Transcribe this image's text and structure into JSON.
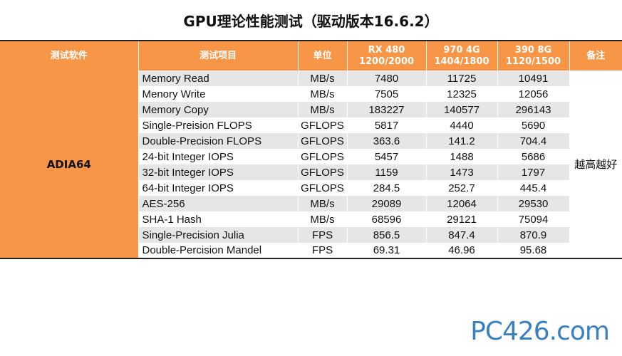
{
  "title": "GPU理论性能测试（驱动版本16.6.2）",
  "headers": {
    "software": "测试软件",
    "item": "测试项目",
    "unit": "单位",
    "gpu1_name": "RX 480",
    "gpu1_clock": "1200/2000",
    "gpu2_name": "970 4G",
    "gpu2_clock": "1404/1800",
    "gpu3_name": "390 8G",
    "gpu3_clock": "1120/1500",
    "note": "备注"
  },
  "software": "ADIA64",
  "note": "越高越好",
  "rows": [
    {
      "item": "Memory Read",
      "unit": "MB/s",
      "v1": "7480",
      "v2": "11725",
      "v3": "10491"
    },
    {
      "item": "Menory Write",
      "unit": "MB/s",
      "v1": "7505",
      "v2": "12325",
      "v3": "12056"
    },
    {
      "item": "Memory Copy",
      "unit": "MB/s",
      "v1": "183227",
      "v2": "140577",
      "v3": "296143"
    },
    {
      "item": "Single-Preision FLOPS",
      "unit": "GFLOPS",
      "v1": "5817",
      "v2": "4440",
      "v3": "5690"
    },
    {
      "item": "Double-Precision FLOPS",
      "unit": "GFLOPS",
      "v1": "363.6",
      "v2": "141.2",
      "v3": "704.4"
    },
    {
      "item": "24-bit Integer IOPS",
      "unit": "GFLOPS",
      "v1": "5457",
      "v2": "1488",
      "v3": "5686"
    },
    {
      "item": "32-bit Integer IOPS",
      "unit": "GFLOPS",
      "v1": "1159",
      "v2": "1473",
      "v3": "1797"
    },
    {
      "item": "64-bit Integer IOPS",
      "unit": "GFLOPS",
      "v1": "284.5",
      "v2": "252.7",
      "v3": "445.4"
    },
    {
      "item": "AES-256",
      "unit": "MB/s",
      "v1": "29089",
      "v2": "12064",
      "v3": "29530"
    },
    {
      "item": "SHA-1 Hash",
      "unit": "MB/s",
      "v1": "68596",
      "v2": "29121",
      "v3": "75094"
    },
    {
      "item": "Single-Precision Julia",
      "unit": "FPS",
      "v1": "856.5",
      "v2": "847.4",
      "v3": "870.9"
    },
    {
      "item": "Double-Percision Mandel",
      "unit": "FPS",
      "v1": "69.31",
      "v2": "46.96",
      "v3": "95.68"
    }
  ],
  "watermark": "PC426.com",
  "colors": {
    "header": "#f79646",
    "shade": "#e6e6e6",
    "logo": "#3a7fc2"
  }
}
